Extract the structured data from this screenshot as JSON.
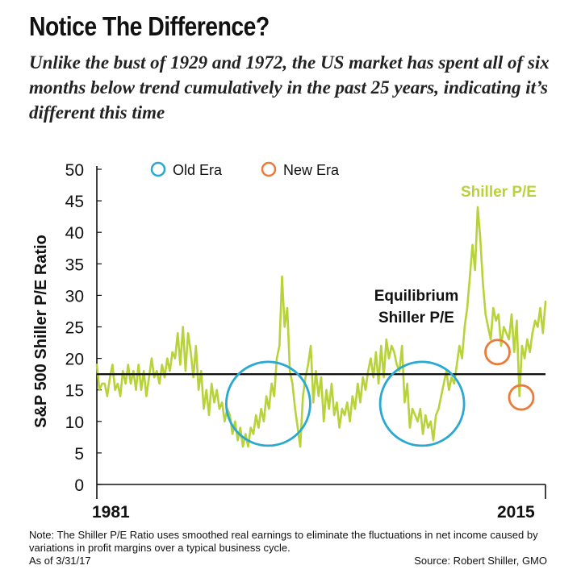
{
  "header": {
    "title": "Notice The Difference?",
    "subtitle": "Unlike the bust of 1929 and 1972, the US market has spent all of six months below trend cumulatively in the past 25 years, indicating it’s different this time"
  },
  "footer": {
    "note": "Note: The Shiller P/E Ratio uses smoothed real earnings to eliminate the fluctuations in net income caused by variations in profit margins over a typical business cycle.",
    "as_of": "As of 3/31/17",
    "source": "Source: Robert Shiller, GMO"
  },
  "chart_data": {
    "type": "line",
    "ylabel": "S&P 500 Shiller P/E Ratio",
    "xlabel": "",
    "ylim": [
      0,
      50
    ],
    "yticks": [
      0,
      5,
      10,
      15,
      20,
      25,
      30,
      35,
      40,
      45,
      50
    ],
    "x_tick_labels": [
      "1981",
      "2015"
    ],
    "grid": false,
    "legend": [
      {
        "label": "Old Era",
        "color": "#29a9d2"
      },
      {
        "label": "New Era",
        "color": "#ea7b3a"
      }
    ],
    "legend_position": "top",
    "colors": {
      "line": "#b8d33a",
      "equilibrium": "#111111",
      "old_era": "#29a9d2",
      "new_era": "#ea7b3a"
    },
    "series": [
      {
        "name": "Shiller P/E",
        "values": [
          19,
          15,
          16,
          16,
          14,
          17,
          19,
          15,
          16,
          14,
          18,
          16,
          19,
          16,
          18,
          15,
          19,
          15,
          18,
          14,
          17,
          20,
          17,
          18,
          16,
          19,
          17,
          20,
          18,
          21,
          20,
          24,
          19,
          25,
          18,
          24,
          21,
          17,
          22,
          15,
          18,
          12,
          15,
          11,
          16,
          13,
          15,
          12,
          13,
          10,
          12,
          11,
          8,
          10,
          7,
          9,
          6,
          8,
          6,
          9,
          8,
          11,
          9,
          12,
          10,
          14,
          12,
          16,
          14,
          20,
          22,
          33,
          25,
          28,
          18,
          16,
          12,
          9,
          6,
          14,
          17,
          19,
          22,
          13,
          18,
          14,
          17,
          10,
          15,
          12,
          16,
          11,
          13,
          9,
          12,
          11,
          13,
          10,
          14,
          12,
          16,
          13,
          17,
          15,
          18,
          20,
          17,
          21,
          16,
          22,
          17,
          23,
          20,
          22,
          21,
          19,
          18,
          22,
          13,
          16,
          9,
          12,
          11,
          10,
          12,
          8,
          11,
          9,
          10,
          7,
          11,
          12,
          14,
          16,
          18,
          15,
          17,
          16,
          19,
          22,
          20,
          25,
          28,
          33,
          38,
          34,
          44,
          39,
          32,
          27,
          25,
          23,
          28,
          26,
          27,
          22,
          25,
          24,
          23,
          27,
          21,
          26,
          14,
          22,
          20,
          23,
          21,
          24,
          26,
          25,
          28,
          24,
          29
        ]
      }
    ],
    "annotations": [
      {
        "text": "Shiller P/E",
        "color": "#b8d33a"
      },
      {
        "text": "Equilibrium",
        "line2": "Shiller P/E",
        "value": 17.5
      }
    ],
    "old_era_circles": [
      {
        "x_frac": 0.382,
        "y": 12.8
      },
      {
        "x_frac": 0.725,
        "y": 12.8
      }
    ],
    "new_era_circles": [
      {
        "x_frac": 0.893,
        "y": 21.0
      },
      {
        "x_frac": 0.946,
        "y": 13.8
      }
    ]
  }
}
